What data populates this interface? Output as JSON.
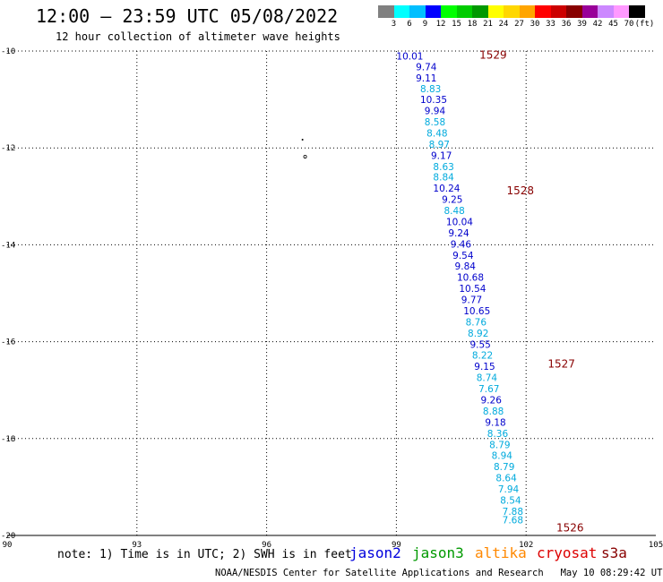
{
  "header": {
    "title": "12:00 – 23:59 UTC 05/08/2022",
    "subtitle": "12 hour collection of altimeter wave heights"
  },
  "legend": {
    "colors": [
      "#808080",
      "#00ffff",
      "#00bfff",
      "#0000ff",
      "#00ff00",
      "#00cc00",
      "#009900",
      "#ffff00",
      "#ffd700",
      "#ffa500",
      "#ff0000",
      "#cc0000",
      "#880000",
      "#990099",
      "#cc88ff",
      "#ff99ff",
      "#000000"
    ],
    "labels": [
      "3",
      "6",
      "9",
      "12",
      "15",
      "18",
      "21",
      "24",
      "27",
      "30",
      "33",
      "36",
      "39",
      "42",
      "45",
      "70",
      "(ft)"
    ]
  },
  "chart_data": {
    "type": "scatter",
    "xlim": [
      90,
      105
    ],
    "ylim": [
      -20,
      -10
    ],
    "x_ticks": [
      "90",
      "93",
      "96",
      "99",
      "102",
      "105"
    ],
    "y_ticks": [
      "-10",
      "-12",
      "-14",
      "-16",
      "-18",
      "-20"
    ],
    "grid": true,
    "points": [
      {
        "lon": 99.0,
        "lat": -10.1,
        "v": "10.01",
        "color": "#0000cc"
      },
      {
        "lon": 99.45,
        "lat": -10.32,
        "v": "9.74",
        "color": "#0000cc"
      },
      {
        "lon": 99.45,
        "lat": -10.55,
        "v": "9.11",
        "color": "#0000cc"
      },
      {
        "lon": 99.55,
        "lat": -10.78,
        "v": "8.83",
        "color": "#00aadd"
      },
      {
        "lon": 99.55,
        "lat": -11.0,
        "v": "10.35",
        "color": "#0000cc"
      },
      {
        "lon": 99.65,
        "lat": -11.23,
        "v": "9.94",
        "color": "#0000cc"
      },
      {
        "lon": 99.65,
        "lat": -11.46,
        "v": "8.58",
        "color": "#00aadd"
      },
      {
        "lon": 99.7,
        "lat": -11.69,
        "v": "8.48",
        "color": "#00aadd"
      },
      {
        "lon": 99.75,
        "lat": -11.92,
        "v": "8.97",
        "color": "#00aadd"
      },
      {
        "lon": 99.8,
        "lat": -12.15,
        "v": "9.17",
        "color": "#0000cc"
      },
      {
        "lon": 99.85,
        "lat": -12.38,
        "v": "8.63",
        "color": "#00aadd"
      },
      {
        "lon": 99.85,
        "lat": -12.6,
        "v": "8.84",
        "color": "#00aadd"
      },
      {
        "lon": 99.85,
        "lat": -12.83,
        "v": "10.24",
        "color": "#0000cc"
      },
      {
        "lon": 100.05,
        "lat": -13.06,
        "v": "9.25",
        "color": "#0000cc"
      },
      {
        "lon": 100.1,
        "lat": -13.29,
        "v": "8.48",
        "color": "#00aadd"
      },
      {
        "lon": 100.15,
        "lat": -13.52,
        "v": "10.04",
        "color": "#0000cc"
      },
      {
        "lon": 100.2,
        "lat": -13.75,
        "v": "9.24",
        "color": "#0000cc"
      },
      {
        "lon": 100.25,
        "lat": -13.98,
        "v": "9.46",
        "color": "#0000cc"
      },
      {
        "lon": 100.3,
        "lat": -14.21,
        "v": "9.54",
        "color": "#0000cc"
      },
      {
        "lon": 100.35,
        "lat": -14.44,
        "v": "9.84",
        "color": "#0000cc"
      },
      {
        "lon": 100.4,
        "lat": -14.67,
        "v": "10.68",
        "color": "#0000cc"
      },
      {
        "lon": 100.45,
        "lat": -14.9,
        "v": "10.54",
        "color": "#0000cc"
      },
      {
        "lon": 100.5,
        "lat": -15.13,
        "v": "9.77",
        "color": "#0000cc"
      },
      {
        "lon": 100.55,
        "lat": -15.36,
        "v": "10.65",
        "color": "#0000cc"
      },
      {
        "lon": 100.6,
        "lat": -15.59,
        "v": "8.76",
        "color": "#00aadd"
      },
      {
        "lon": 100.65,
        "lat": -15.82,
        "v": "8.92",
        "color": "#00aadd"
      },
      {
        "lon": 100.7,
        "lat": -16.05,
        "v": "9.55",
        "color": "#0000cc"
      },
      {
        "lon": 100.75,
        "lat": -16.28,
        "v": "8.22",
        "color": "#00aadd"
      },
      {
        "lon": 100.8,
        "lat": -16.51,
        "v": "9.15",
        "color": "#0000cc"
      },
      {
        "lon": 100.85,
        "lat": -16.74,
        "v": "8.74",
        "color": "#00aadd"
      },
      {
        "lon": 100.9,
        "lat": -16.97,
        "v": "7.67",
        "color": "#00aadd"
      },
      {
        "lon": 100.95,
        "lat": -17.2,
        "v": "9.26",
        "color": "#0000cc"
      },
      {
        "lon": 101.0,
        "lat": -17.43,
        "v": "8.88",
        "color": "#00aadd"
      },
      {
        "lon": 101.05,
        "lat": -17.66,
        "v": "9.18",
        "color": "#0000cc"
      },
      {
        "lon": 101.1,
        "lat": -17.89,
        "v": "8.36",
        "color": "#00aadd"
      },
      {
        "lon": 101.15,
        "lat": -18.12,
        "v": "8.79",
        "color": "#00aadd"
      },
      {
        "lon": 101.2,
        "lat": -18.35,
        "v": "8.94",
        "color": "#00aadd"
      },
      {
        "lon": 101.25,
        "lat": -18.58,
        "v": "8.79",
        "color": "#00aadd"
      },
      {
        "lon": 101.3,
        "lat": -18.81,
        "v": "8.64",
        "color": "#00aadd"
      },
      {
        "lon": 101.35,
        "lat": -19.04,
        "v": "7.94",
        "color": "#00aadd"
      },
      {
        "lon": 101.4,
        "lat": -19.27,
        "v": "8.54",
        "color": "#00aadd"
      },
      {
        "lon": 101.45,
        "lat": -19.5,
        "v": "7.88",
        "color": "#00aadd"
      },
      {
        "lon": 101.45,
        "lat": -19.68,
        "v": "7.68",
        "color": "#00aadd"
      }
    ],
    "time_labels": [
      {
        "lon": 100.92,
        "lat": -10.08,
        "t": "1529"
      },
      {
        "lon": 101.55,
        "lat": -12.88,
        "t": "1528"
      },
      {
        "lon": 102.5,
        "lat": -16.46,
        "t": "1527"
      },
      {
        "lon": 102.7,
        "lat": -19.84,
        "t": "1526"
      }
    ]
  },
  "footer": {
    "note": "note: 1) Time is in UTC; 2) SWH is in feet",
    "satellites": [
      {
        "name": "jason2",
        "color": "#0000dd"
      },
      {
        "name": "jason3",
        "color": "#009900"
      },
      {
        "name": "altika",
        "color": "#ff8800"
      },
      {
        "name": "cryosat",
        "color": "#dd0000"
      },
      {
        "name": "s3a",
        "color": "#880000"
      }
    ],
    "credit": "NOAA/NESDIS Center for Satellite Applications and Research   May 10 08:29:42 UTC 2022"
  }
}
